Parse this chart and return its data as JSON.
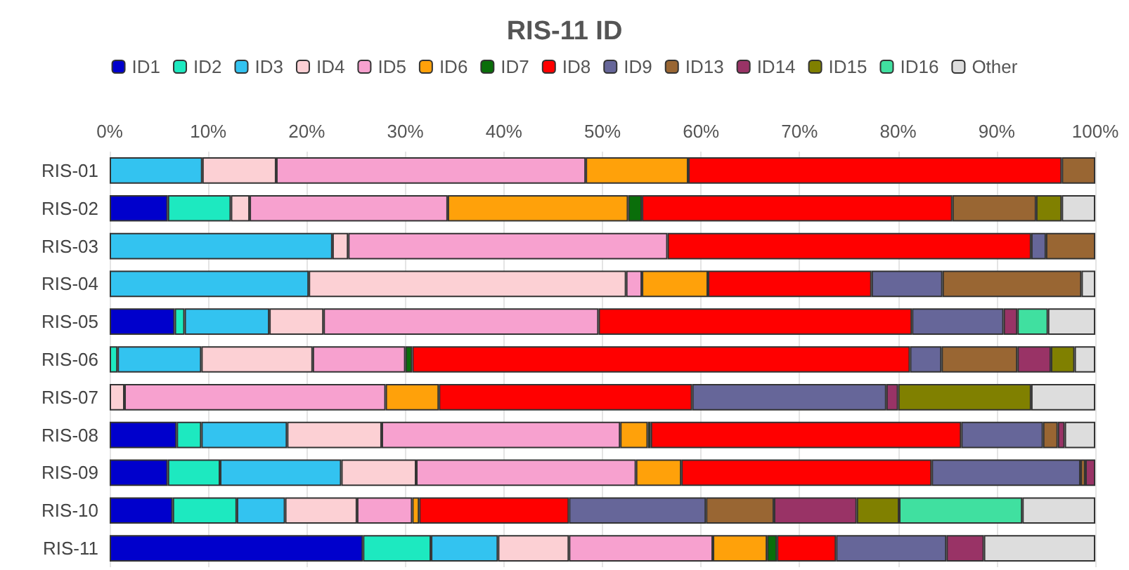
{
  "chart_data": {
    "type": "bar",
    "title": "RIS-11 ID",
    "orientation": "horizontal",
    "stacked": true,
    "categories": [
      "RIS-01",
      "RIS-02",
      "RIS-03",
      "RIS-04",
      "RIS-05",
      "RIS-06",
      "RIS-07",
      "RIS-08",
      "RIS-09",
      "RIS-10",
      "RIS-11"
    ],
    "series": [
      {
        "name": "ID1",
        "color": "#0000cc",
        "values": [
          null,
          5.9,
          null,
          null,
          6.6,
          null,
          null,
          6.8,
          5.9,
          6.4,
          25.7
        ]
      },
      {
        "name": "ID2",
        "color": "#1de9c0",
        "values": [
          null,
          6.4,
          null,
          null,
          1.0,
          0.8,
          null,
          2.5,
          5.3,
          6.5,
          6.9
        ]
      },
      {
        "name": "ID3",
        "color": "#33c3f0",
        "values": [
          9.4,
          null,
          22.6,
          20.2,
          8.6,
          8.5,
          null,
          8.7,
          12.3,
          4.9,
          6.8
        ]
      },
      {
        "name": "ID4",
        "color": "#fcd0d4",
        "values": [
          7.5,
          1.9,
          1.6,
          32.2,
          5.5,
          11.3,
          1.5,
          9.6,
          7.6,
          7.3,
          7.2
        ]
      },
      {
        "name": "ID5",
        "color": "#f7a1cf",
        "values": [
          31.4,
          20.1,
          32.4,
          1.6,
          27.9,
          9.4,
          26.5,
          24.2,
          22.3,
          5.6,
          14.6
        ]
      },
      {
        "name": "ID6",
        "color": "#ffa10a",
        "values": [
          10.4,
          18.3,
          null,
          6.7,
          null,
          null,
          5.4,
          2.8,
          4.6,
          0.7,
          5.5
        ]
      },
      {
        "name": "ID7",
        "color": "#0a6e0a",
        "values": [
          null,
          1.4,
          null,
          null,
          null,
          0.7,
          null,
          0.3,
          null,
          null,
          1.0
        ]
      },
      {
        "name": "ID8",
        "color": "#ff0000",
        "values": [
          37.9,
          31.5,
          36.9,
          16.6,
          31.8,
          50.5,
          25.7,
          31.5,
          25.4,
          15.2,
          6.0
        ]
      },
      {
        "name": "ID9",
        "color": "#666699",
        "values": [
          null,
          null,
          1.5,
          7.2,
          9.3,
          3.2,
          19.7,
          8.3,
          15.1,
          13.9,
          11.2
        ]
      },
      {
        "name": "ID13",
        "color": "#996633",
        "values": [
          3.4,
          8.5,
          5.0,
          14.1,
          null,
          7.7,
          null,
          1.5,
          0.5,
          6.9,
          null
        ]
      },
      {
        "name": "ID14",
        "color": "#993366",
        "values": [
          null,
          null,
          null,
          null,
          1.4,
          3.4,
          1.2,
          0.7,
          1.0,
          8.4,
          3.8
        ]
      },
      {
        "name": "ID15",
        "color": "#808000",
        "values": [
          null,
          2.6,
          null,
          null,
          null,
          2.4,
          13.5,
          null,
          null,
          4.3,
          null
        ]
      },
      {
        "name": "ID16",
        "color": "#40e0a0",
        "values": [
          null,
          null,
          null,
          null,
          3.1,
          null,
          null,
          null,
          null,
          12.5,
          null
        ]
      },
      {
        "name": "Other",
        "color": "#dddddd",
        "values": [
          null,
          3.4,
          null,
          1.4,
          4.8,
          2.1,
          6.5,
          3.1,
          null,
          7.4,
          11.3
        ]
      }
    ],
    "xlim": [
      0,
      100
    ],
    "xticks": [
      {
        "value": 0,
        "label": "0%"
      },
      {
        "value": 10,
        "label": "10%"
      },
      {
        "value": 20,
        "label": "20%"
      },
      {
        "value": 30,
        "label": "30%"
      },
      {
        "value": 40,
        "label": "40%"
      },
      {
        "value": 50,
        "label": "50%"
      },
      {
        "value": 60,
        "label": "60%"
      },
      {
        "value": 70,
        "label": "70%"
      },
      {
        "value": 80,
        "label": "80%"
      },
      {
        "value": 90,
        "label": "90%"
      },
      {
        "value": 100,
        "label": "100%"
      }
    ],
    "grid": "x",
    "legend": "top"
  }
}
